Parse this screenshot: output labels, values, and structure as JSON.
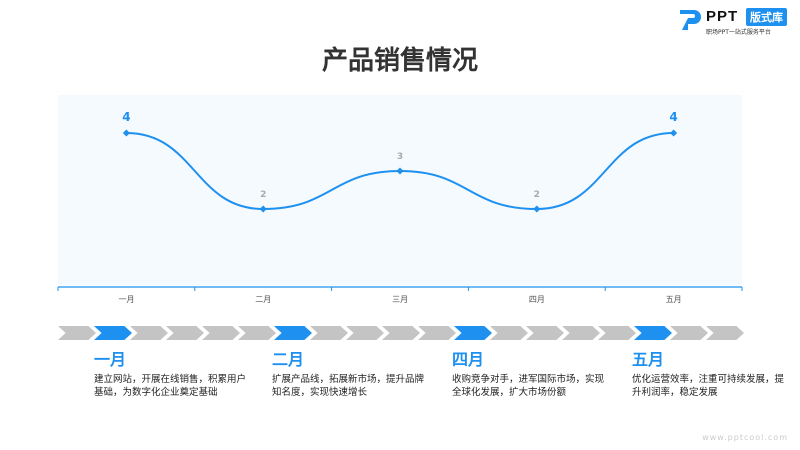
{
  "logo": {
    "text": "PPT",
    "badge": "版式库",
    "subtitle": "职场PPT一站式服务平台"
  },
  "title": "产品销售情况",
  "colors": {
    "accent": "#1e90f0",
    "chevron_gray": "#c4c4c4",
    "plot_bg": "#f5fafe"
  },
  "chart_data": {
    "type": "line",
    "categories": [
      "一月",
      "二月",
      "三月",
      "四月",
      "五月"
    ],
    "values": [
      4,
      2,
      3,
      2,
      4
    ],
    "ylim": [
      0,
      5
    ],
    "smooth": true,
    "grid": false,
    "data_labels": true
  },
  "timeline": {
    "chevron_count": 19,
    "highlighted": [
      1,
      6,
      11,
      16
    ],
    "items": [
      {
        "title": "一月",
        "desc": "建立网站，开展在线销售，积累用户基础，为数字化企业奠定基础"
      },
      {
        "title": "二月",
        "desc": "扩展产品线，拓展新市场，提升品牌知名度，实现快速增长"
      },
      {
        "title": "四月",
        "desc": "收购竞争对手，进军国际市场，实现全球化发展，扩大市场份额"
      },
      {
        "title": "五月",
        "desc": "优化运营效率，注重可持续发展，提升利润率，稳定发展"
      }
    ]
  },
  "watermark": "www.pptcool.com"
}
